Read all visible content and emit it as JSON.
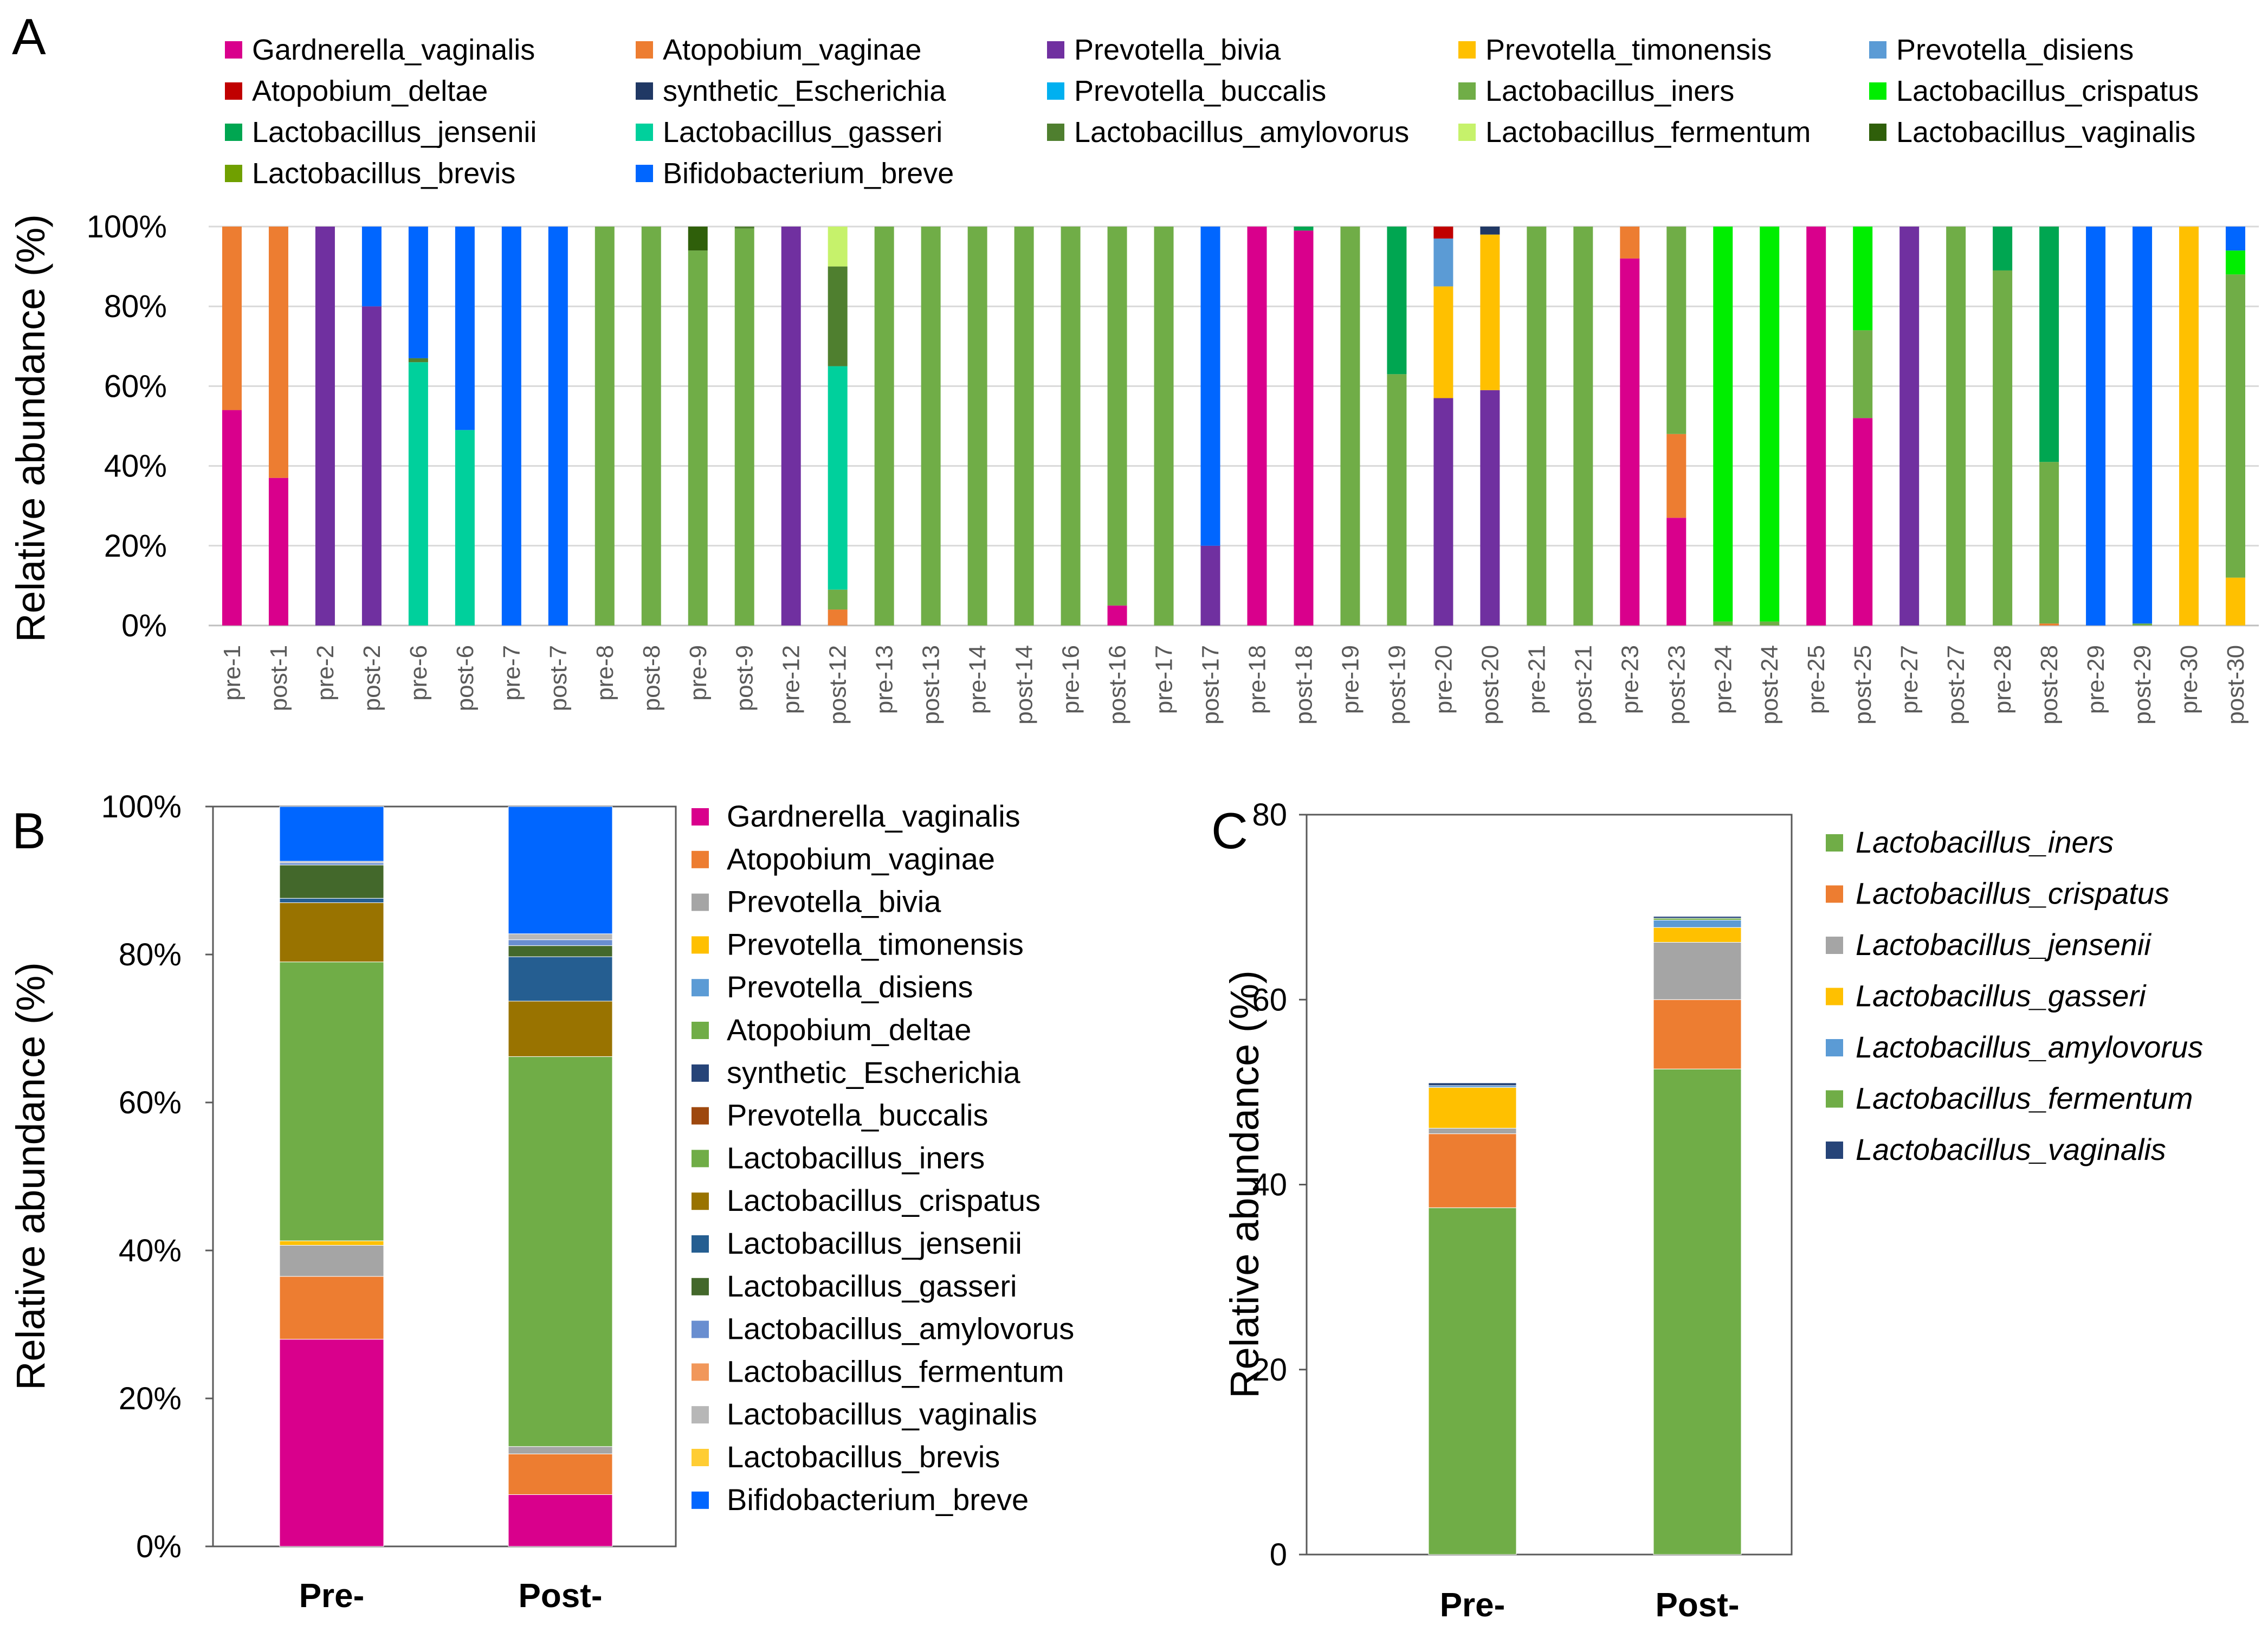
{
  "chart_data": [
    {
      "panel": "A",
      "type": "bar",
      "stacked": true,
      "ylabel": "Relative abundance (%)",
      "ylim": [
        0,
        100
      ],
      "yticks": [
        "0%",
        "20%",
        "40%",
        "60%",
        "80%",
        "100%"
      ],
      "grid": true,
      "legend_position": "top",
      "legend": [
        {
          "name": "Gardnerella_vaginalis",
          "color": "#d9008c"
        },
        {
          "name": "Atopobium_vaginae",
          "color": "#ed7d31"
        },
        {
          "name": "Prevotella_bivia",
          "color": "#7030a0"
        },
        {
          "name": "Prevotella_timonensis",
          "color": "#ffc000"
        },
        {
          "name": "Prevotella_disiens",
          "color": "#5b9bd5"
        },
        {
          "name": "Atopobium_deltae",
          "color": "#c00000"
        },
        {
          "name": "synthetic_Escherichia",
          "color": "#203864"
        },
        {
          "name": "Prevotella_buccalis",
          "color": "#00b0f0"
        },
        {
          "name": "Lactobacillus_iners",
          "color": "#70ad47"
        },
        {
          "name": "Lactobacillus_crispatus",
          "color": "#00ee00"
        },
        {
          "name": "Lactobacillus_jensenii",
          "color": "#00a651"
        },
        {
          "name": "Lactobacillus_gasseri",
          "color": "#00d09c"
        },
        {
          "name": "Lactobacillus_amylovorus",
          "color": "#4f7f2f"
        },
        {
          "name": "Lactobacillus_fermentum",
          "color": "#c6f26b"
        },
        {
          "name": "Lactobacillus_vaginalis",
          "color": "#2f5f0a"
        },
        {
          "name": "Lactobacillus_brevis",
          "color": "#70a000"
        },
        {
          "name": "Bifidobacterium_breve",
          "color": "#0066ff"
        }
      ],
      "categories": [
        "pre-1",
        "post-1",
        "pre-2",
        "post-2",
        "pre-6",
        "post-6",
        "pre-7",
        "post-7",
        "pre-8",
        "post-8",
        "pre-9",
        "post-9",
        "pre-12",
        "post-12",
        "pre-13",
        "post-13",
        "pre-14",
        "post-14",
        "pre-16",
        "post-16",
        "pre-17",
        "post-17",
        "pre-18",
        "post-18",
        "pre-19",
        "post-19",
        "pre-20",
        "post-20",
        "pre-21",
        "post-21",
        "pre-23",
        "post-23",
        "pre-24",
        "post-24",
        "pre-25",
        "post-25",
        "pre-27",
        "post-27",
        "pre-28",
        "post-28",
        "pre-29",
        "post-29",
        "pre-30",
        "post-30"
      ],
      "samples": [
        [
          [
            "Gardnerella_vaginalis",
            54
          ],
          [
            "Atopobium_vaginae",
            46
          ]
        ],
        [
          [
            "Gardnerella_vaginalis",
            37
          ],
          [
            "Atopobium_vaginae",
            63
          ]
        ],
        [
          [
            "Prevotella_bivia",
            100
          ]
        ],
        [
          [
            "Prevotella_bivia",
            80
          ],
          [
            "Bifidobacterium_breve",
            20
          ]
        ],
        [
          [
            "Lactobacillus_gasseri",
            66
          ],
          [
            "Lactobacillus_amylovorus",
            1
          ],
          [
            "Bifidobacterium_breve",
            33
          ]
        ],
        [
          [
            "Lactobacillus_gasseri",
            49
          ],
          [
            "Bifidobacterium_breve",
            51
          ]
        ],
        [
          [
            "Bifidobacterium_breve",
            100
          ]
        ],
        [
          [
            "Bifidobacterium_breve",
            100
          ]
        ],
        [
          [
            "Lactobacillus_iners",
            100
          ]
        ],
        [
          [
            "Lactobacillus_iners",
            100
          ]
        ],
        [
          [
            "Lactobacillus_iners",
            94
          ],
          [
            "Lactobacillus_vaginalis",
            6
          ]
        ],
        [
          [
            "Lactobacillus_iners",
            99.5
          ],
          [
            "Lactobacillus_amylovorus",
            0.5
          ]
        ],
        [
          [
            "Prevotella_bivia",
            100
          ]
        ],
        [
          [
            "Atopobium_vaginae",
            4
          ],
          [
            "Lactobacillus_iners",
            5
          ],
          [
            "Lactobacillus_gasseri",
            56
          ],
          [
            "Lactobacillus_amylovorus",
            25
          ],
          [
            "Lactobacillus_fermentum",
            10
          ]
        ],
        [
          [
            "Lactobacillus_iners",
            100
          ]
        ],
        [
          [
            "Lactobacillus_iners",
            100
          ]
        ],
        [
          [
            "Lactobacillus_iners",
            100
          ]
        ],
        [
          [
            "Lactobacillus_iners",
            100
          ]
        ],
        [
          [
            "Lactobacillus_iners",
            100
          ]
        ],
        [
          [
            "Gardnerella_vaginalis",
            5
          ],
          [
            "Lactobacillus_iners",
            95
          ]
        ],
        [
          [
            "Lactobacillus_iners",
            100
          ]
        ],
        [
          [
            "Prevotella_bivia",
            20
          ],
          [
            "Bifidobacterium_breve",
            80
          ]
        ],
        [
          [
            "Gardnerella_vaginalis",
            100
          ]
        ],
        [
          [
            "Gardnerella_vaginalis",
            99
          ],
          [
            "Lactobacillus_jensenii",
            1
          ]
        ],
        [
          [
            "Lactobacillus_iners",
            100
          ]
        ],
        [
          [
            "Lactobacillus_iners",
            63
          ],
          [
            "Lactobacillus_jensenii",
            37
          ]
        ],
        [
          [
            "Prevotella_bivia",
            57
          ],
          [
            "Prevotella_timonensis",
            28
          ],
          [
            "Prevotella_disiens",
            12
          ],
          [
            "Atopobium_deltae",
            3
          ]
        ],
        [
          [
            "Prevotella_bivia",
            59
          ],
          [
            "Prevotella_timonensis",
            39
          ],
          [
            "synthetic_Escherichia",
            2
          ]
        ],
        [
          [
            "Lactobacillus_iners",
            100
          ]
        ],
        [
          [
            "Lactobacillus_iners",
            100
          ]
        ],
        [
          [
            "Gardnerella_vaginalis",
            92
          ],
          [
            "Atopobium_vaginae",
            8
          ]
        ],
        [
          [
            "Gardnerella_vaginalis",
            27
          ],
          [
            "Atopobium_vaginae",
            21
          ],
          [
            "Lactobacillus_iners",
            52
          ]
        ],
        [
          [
            "Lactobacillus_iners",
            1
          ],
          [
            "Lactobacillus_crispatus",
            99
          ]
        ],
        [
          [
            "Lactobacillus_iners",
            1
          ],
          [
            "Lactobacillus_crispatus",
            99
          ]
        ],
        [
          [
            "Gardnerella_vaginalis",
            100
          ]
        ],
        [
          [
            "Gardnerella_vaginalis",
            52
          ],
          [
            "Lactobacillus_iners",
            22
          ],
          [
            "Lactobacillus_crispatus",
            26
          ]
        ],
        [
          [
            "Prevotella_bivia",
            100
          ]
        ],
        [
          [
            "Lactobacillus_iners",
            100
          ]
        ],
        [
          [
            "Lactobacillus_iners",
            89
          ],
          [
            "Lactobacillus_jensenii",
            11
          ]
        ],
        [
          [
            "Atopobium_vaginae",
            0.5
          ],
          [
            "Lactobacillus_iners",
            40.5
          ],
          [
            "Lactobacillus_jensenii",
            59
          ]
        ],
        [
          [
            "Bifidobacterium_breve",
            100
          ]
        ],
        [
          [
            "Lactobacillus_iners",
            0.5
          ],
          [
            "Bifidobacterium_breve",
            99.5
          ]
        ],
        [
          [
            "Prevotella_timonensis",
            100
          ]
        ],
        [
          [
            "Prevotella_timonensis",
            12
          ],
          [
            "Lactobacillus_iners",
            76
          ],
          [
            "Lactobacillus_crispatus",
            6
          ],
          [
            "Bifidobacterium_breve",
            6
          ]
        ]
      ]
    },
    {
      "panel": "B",
      "type": "bar",
      "stacked": true,
      "ylabel": "Relative abundance (%)",
      "ylim": [
        0,
        100
      ],
      "yticks": [
        "0%",
        "20%",
        "40%",
        "60%",
        "80%",
        "100%"
      ],
      "grid": false,
      "legend_position": "right",
      "categories": [
        "Pre-",
        "Post-"
      ],
      "legend": [
        {
          "name": "Gardnerella_vaginalis",
          "color": "#d9008c"
        },
        {
          "name": "Atopobium_vaginae",
          "color": "#ed7d31"
        },
        {
          "name": "Prevotella_bivia",
          "color": "#a5a5a5"
        },
        {
          "name": "Prevotella_timonensis",
          "color": "#ffc000"
        },
        {
          "name": "Prevotella_disiens",
          "color": "#5b9bd5"
        },
        {
          "name": "Atopobium_deltae",
          "color": "#70ad47"
        },
        {
          "name": "synthetic_Escherichia",
          "color": "#264478"
        },
        {
          "name": "Prevotella_buccalis",
          "color": "#9e480e"
        },
        {
          "name": "Lactobacillus_iners",
          "color": "#70ad47"
        },
        {
          "name": "Lactobacillus_crispatus",
          "color": "#997300"
        },
        {
          "name": "Lactobacillus_jensenii",
          "color": "#255e91"
        },
        {
          "name": "Lactobacillus_gasseri",
          "color": "#43682b"
        },
        {
          "name": "Lactobacillus_amylovorus",
          "color": "#698ed0"
        },
        {
          "name": "Lactobacillus_fermentum",
          "color": "#f1975a"
        },
        {
          "name": "Lactobacillus_vaginalis",
          "color": "#b7b7b7"
        },
        {
          "name": "Lactobacillus_brevis",
          "color": "#ffcd33"
        },
        {
          "name": "Bifidobacterium_breve",
          "color": "#0066ff"
        }
      ],
      "series": [
        {
          "name": "Gardnerella_vaginalis",
          "values": [
            28,
            7
          ]
        },
        {
          "name": "Atopobium_vaginae",
          "values": [
            8.5,
            5.5
          ]
        },
        {
          "name": "Prevotella_bivia",
          "values": [
            4.2,
            1
          ]
        },
        {
          "name": "Prevotella_timonensis",
          "values": [
            0.6,
            0
          ]
        },
        {
          "name": "Prevotella_disiens",
          "values": [
            0,
            0
          ]
        },
        {
          "name": "Atopobium_deltae",
          "values": [
            0,
            0
          ]
        },
        {
          "name": "synthetic_Escherichia",
          "values": [
            0,
            0
          ]
        },
        {
          "name": "Prevotella_buccalis",
          "values": [
            0,
            0
          ]
        },
        {
          "name": "Lactobacillus_iners",
          "values": [
            37.7,
            52.7
          ]
        },
        {
          "name": "Lactobacillus_crispatus",
          "values": [
            8,
            7.5
          ]
        },
        {
          "name": "Lactobacillus_jensenii",
          "values": [
            0.6,
            6
          ]
        },
        {
          "name": "Lactobacillus_gasseri",
          "values": [
            4.5,
            1.5
          ]
        },
        {
          "name": "Lactobacillus_amylovorus",
          "values": [
            0.3,
            0.8
          ]
        },
        {
          "name": "Lactobacillus_fermentum",
          "values": [
            0,
            0
          ]
        },
        {
          "name": "Lactobacillus_vaginalis",
          "values": [
            0.2,
            0.8
          ]
        },
        {
          "name": "Lactobacillus_brevis",
          "values": [
            0,
            0
          ]
        },
        {
          "name": "Bifidobacterium_breve",
          "values": [
            7.4,
            17.2
          ]
        }
      ]
    },
    {
      "panel": "C",
      "type": "bar",
      "stacked": true,
      "ylabel": "Relative abundance (%)",
      "ylim": [
        0,
        80
      ],
      "yticks": [
        "0",
        "20",
        "40",
        "60",
        "80"
      ],
      "grid": false,
      "legend_position": "right",
      "categories": [
        "Pre-",
        "Post-"
      ],
      "series": [
        {
          "name": "Lactobacillus_iners",
          "color": "#70ad47",
          "values": [
            37.5,
            52.5
          ]
        },
        {
          "name": "Lactobacillus_crispatus",
          "color": "#ed7d31",
          "values": [
            8,
            7.5
          ]
        },
        {
          "name": "Lactobacillus_jensenii",
          "color": "#a5a5a5",
          "values": [
            0.6,
            6.2
          ]
        },
        {
          "name": "Lactobacillus_gasseri",
          "color": "#ffc000",
          "values": [
            4.4,
            1.6
          ]
        },
        {
          "name": "Lactobacillus_amylovorus",
          "color": "#5b9bd5",
          "values": [
            0.2,
            0.8
          ]
        },
        {
          "name": "Lactobacillus_fermentum",
          "color": "#70ad47",
          "values": [
            0,
            0.2
          ]
        },
        {
          "name": "Lactobacillus_vaginalis",
          "color": "#264478",
          "values": [
            0.3,
            0.2
          ]
        }
      ]
    }
  ],
  "panel_labels": {
    "a": "A",
    "b": "B",
    "c": "C"
  }
}
